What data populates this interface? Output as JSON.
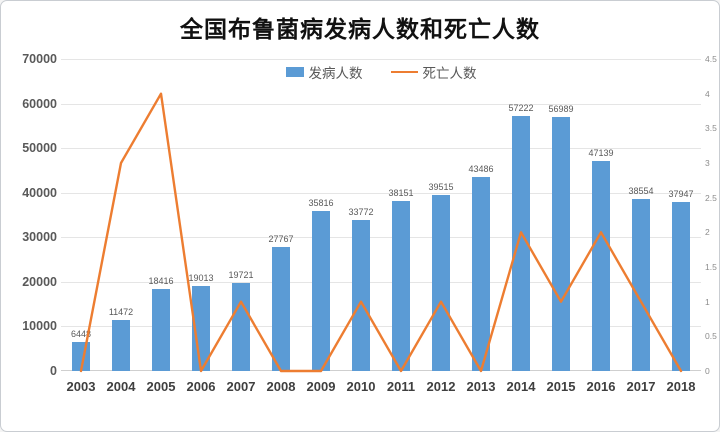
{
  "title": "全国布鲁菌病发病人数和死亡人数",
  "legend": {
    "incidence_label": "发病人数",
    "deaths_label": "死亡人数"
  },
  "colors": {
    "bar": "#5B9BD5",
    "line": "#ED7D31",
    "grid": "#E5E5E5",
    "axis_line": "#CFCFCF",
    "title_text": "#111111",
    "left_axis_text": "#595959",
    "right_axis_text": "#8C8C8C",
    "bar_label_text": "#595959",
    "x_axis_text": "#3F3F3F"
  },
  "chart_data": {
    "type": "combo",
    "title": "全国布鲁菌病发病人数和死亡人数",
    "categories": [
      "2003",
      "2004",
      "2005",
      "2006",
      "2007",
      "2008",
      "2009",
      "2010",
      "2011",
      "2012",
      "2013",
      "2014",
      "2015",
      "2016",
      "2017",
      "2018"
    ],
    "series": [
      {
        "name": "发病人数",
        "type": "bar",
        "axis": "left",
        "color": "#5B9BD5",
        "values": [
          6448,
          11472,
          18416,
          19013,
          19721,
          27767,
          35816,
          33772,
          38151,
          39515,
          43486,
          57222,
          56989,
          47139,
          38554,
          37947
        ],
        "data_labels": true
      },
      {
        "name": "死亡人数",
        "type": "line",
        "axis": "right",
        "color": "#ED7D31",
        "values": [
          0,
          3,
          4,
          0,
          1,
          0,
          0,
          1,
          0,
          1,
          0,
          2,
          1,
          2,
          1,
          0
        ],
        "data_labels": false
      }
    ],
    "left_axis": {
      "min": 0,
      "max": 70000,
      "step": 10000,
      "ticks": [
        "0",
        "10000",
        "20000",
        "30000",
        "40000",
        "50000",
        "60000",
        "70000"
      ]
    },
    "right_axis": {
      "min": 0,
      "max": 4.5,
      "step": 0.5,
      "ticks": [
        "0",
        "0.5",
        "1",
        "1.5",
        "2",
        "2.5",
        "3",
        "3.5",
        "4",
        "4.5"
      ]
    },
    "grid": "horizontal",
    "legend_position": "top-center"
  }
}
